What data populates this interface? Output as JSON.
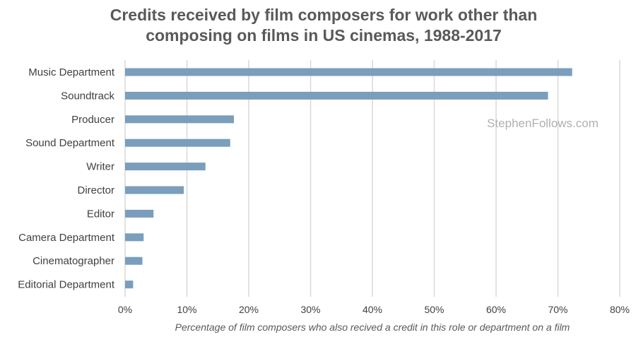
{
  "chart_data": {
    "type": "bar",
    "orientation": "horizontal",
    "title": [
      "Credits received by film composers for work other than",
      "composing on films in US cinemas, 1988-2017"
    ],
    "xlabel": "Percentage of film composers who also recived a credit in this role or department on a film",
    "ylabel": "",
    "categories": [
      "Music Department",
      "Soundtrack",
      "Producer",
      "Sound Department",
      "Writer",
      "Director",
      "Editor",
      "Camera Department",
      "Cinematographer",
      "Editorial Department"
    ],
    "values": [
      72.3,
      68.4,
      17.6,
      17.0,
      13.0,
      9.5,
      4.6,
      3.0,
      2.8,
      1.3
    ],
    "xlim": [
      0,
      80
    ],
    "ticks": [
      "0%",
      "10%",
      "20%",
      "30%",
      "40%",
      "50%",
      "60%",
      "70%",
      "80%"
    ],
    "grid": true,
    "bar_color": "#7a9ebc",
    "watermark": "StephenFollows.com"
  }
}
